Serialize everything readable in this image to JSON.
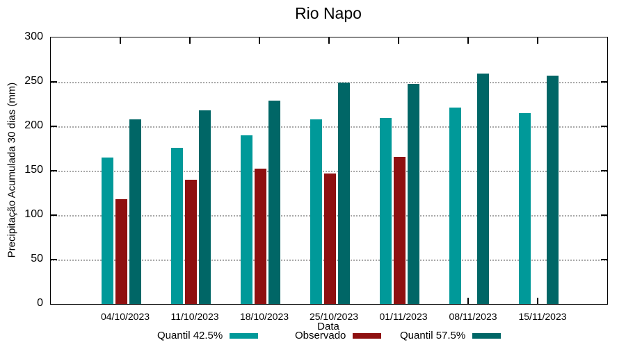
{
  "chart_data": {
    "type": "bar",
    "title": "Rio Napo",
    "xlabel": "Data",
    "ylabel": "Precipitação Acumulada 30 dias (mm)",
    "categories": [
      "04/10/2023",
      "11/10/2023",
      "18/10/2023",
      "25/10/2023",
      "01/11/2023",
      "08/11/2023",
      "15/11/2023"
    ],
    "series": [
      {
        "name": "Quantil 42.5%",
        "color": "#009999",
        "values": [
          165,
          176,
          190,
          208,
          209,
          221,
          215
        ]
      },
      {
        "name": "Observado",
        "color": "#8E1010",
        "values": [
          118,
          140,
          152,
          147,
          166,
          null,
          null
        ]
      },
      {
        "name": "Quantil 57.5%",
        "color": "#006666",
        "values": [
          208,
          218,
          229,
          249,
          248,
          259,
          257
        ]
      }
    ],
    "ylim": [
      0,
      300
    ],
    "yticks": [
      0,
      50,
      100,
      150,
      200,
      250,
      300
    ],
    "grid": "horizontal-dotted",
    "legend_position": "bottom",
    "frame_color": "#000000",
    "gridline_color": "#a8a8a8"
  }
}
